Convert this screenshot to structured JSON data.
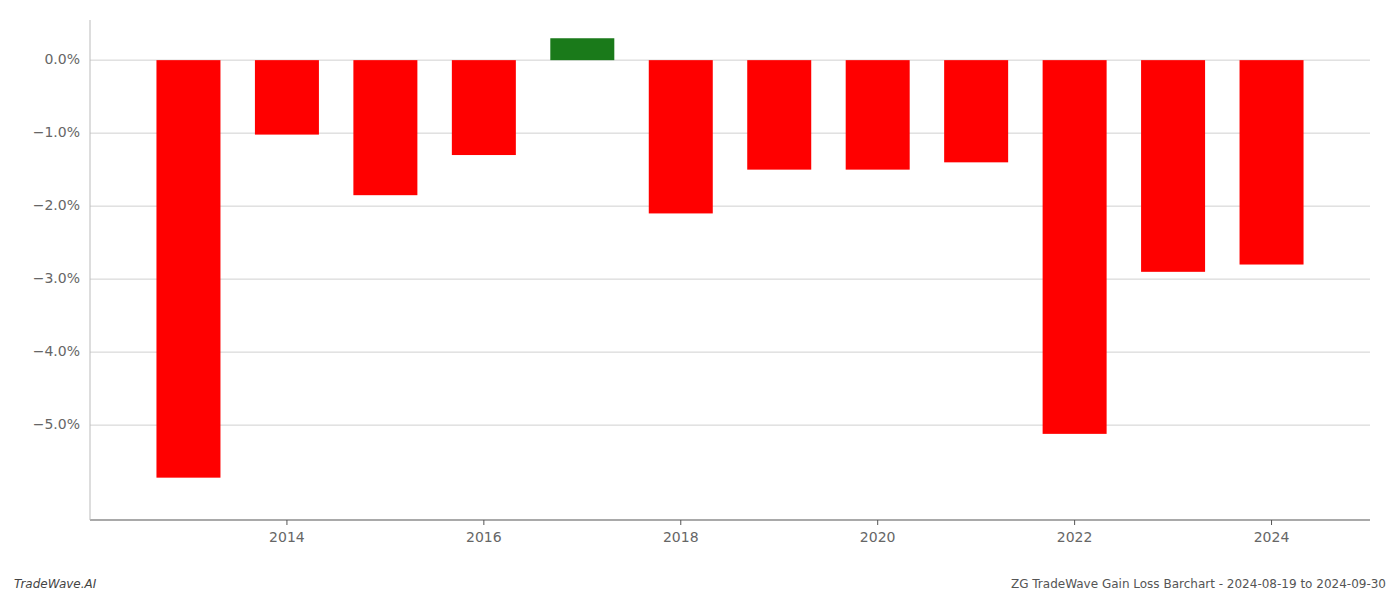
{
  "chart_data": {
    "type": "bar",
    "x": [
      2013,
      2014,
      2015,
      2016,
      2017,
      2018,
      2019,
      2020,
      2021,
      2022,
      2023,
      2024
    ],
    "values": [
      -5.72,
      -1.02,
      -1.85,
      -1.3,
      0.3,
      -2.1,
      -1.5,
      -1.5,
      -1.4,
      -5.12,
      -2.9,
      -2.8
    ],
    "colors": [
      "#ff0000",
      "#ff0000",
      "#ff0000",
      "#ff0000",
      "#1a7a1a",
      "#ff0000",
      "#ff0000",
      "#ff0000",
      "#ff0000",
      "#ff0000",
      "#ff0000",
      "#ff0000"
    ],
    "xlim": [
      2012,
      2025
    ],
    "xticks": [
      2014,
      2016,
      2018,
      2020,
      2022,
      2024
    ],
    "ylim": [
      -6.3,
      0.55
    ],
    "yticks": [
      {
        "value": 0.0,
        "label": "0.0%"
      },
      {
        "value": -1.0,
        "label": "−1.0%"
      },
      {
        "value": -2.0,
        "label": "−2.0%"
      },
      {
        "value": -3.0,
        "label": "−3.0%"
      },
      {
        "value": -4.0,
        "label": "−4.0%"
      },
      {
        "value": -5.0,
        "label": "−5.0%"
      }
    ],
    "grid": true,
    "annotations": [
      "TradeWave.AI",
      "ZG TradeWave Gain Loss Barchart - 2024-08-19 to 2024-09-30"
    ]
  }
}
